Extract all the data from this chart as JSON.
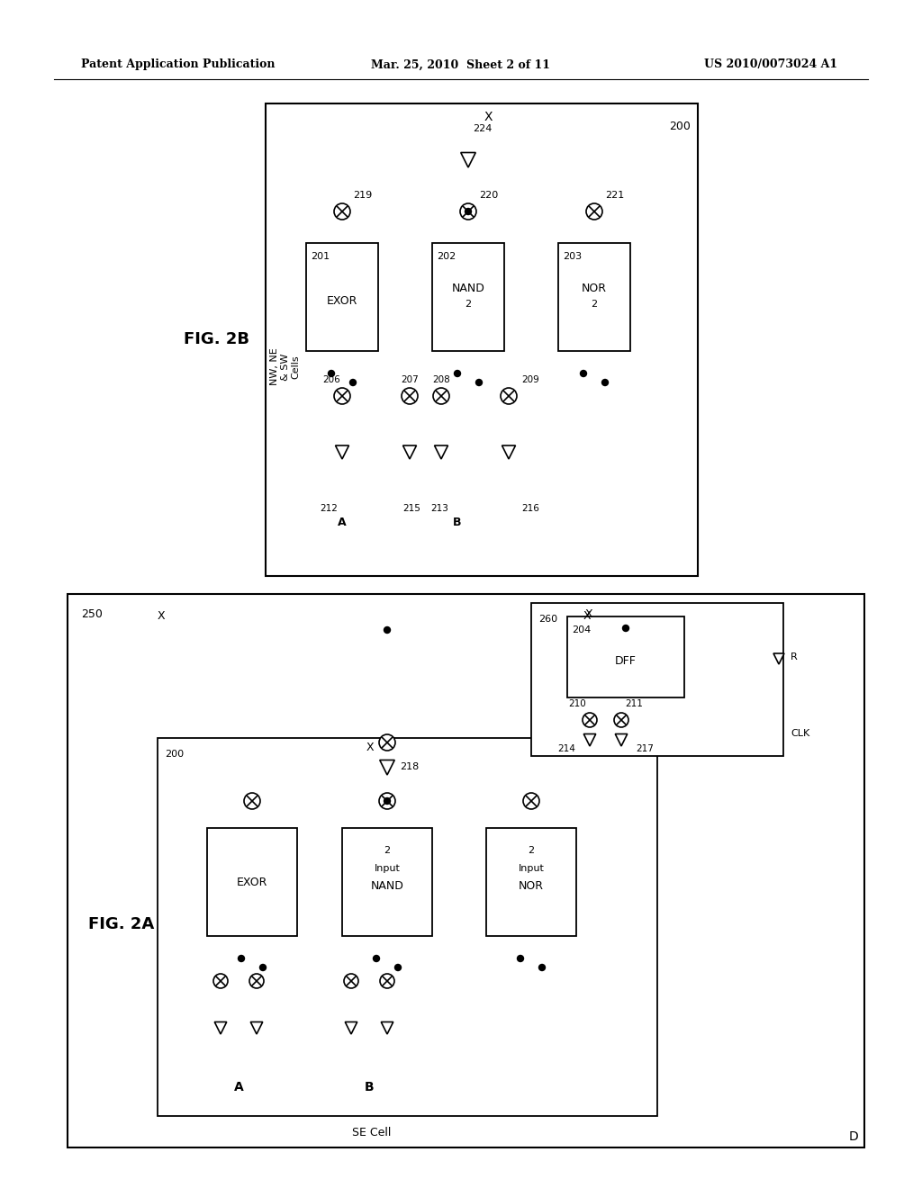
{
  "background_color": "#ffffff",
  "header_left": "Patent Application Publication",
  "header_center": "Mar. 25, 2010  Sheet 2 of 11",
  "header_right": "US 2010/0073024 A1",
  "fig2b_label": "FIG. 2B",
  "fig2a_label": "FIG. 2A"
}
